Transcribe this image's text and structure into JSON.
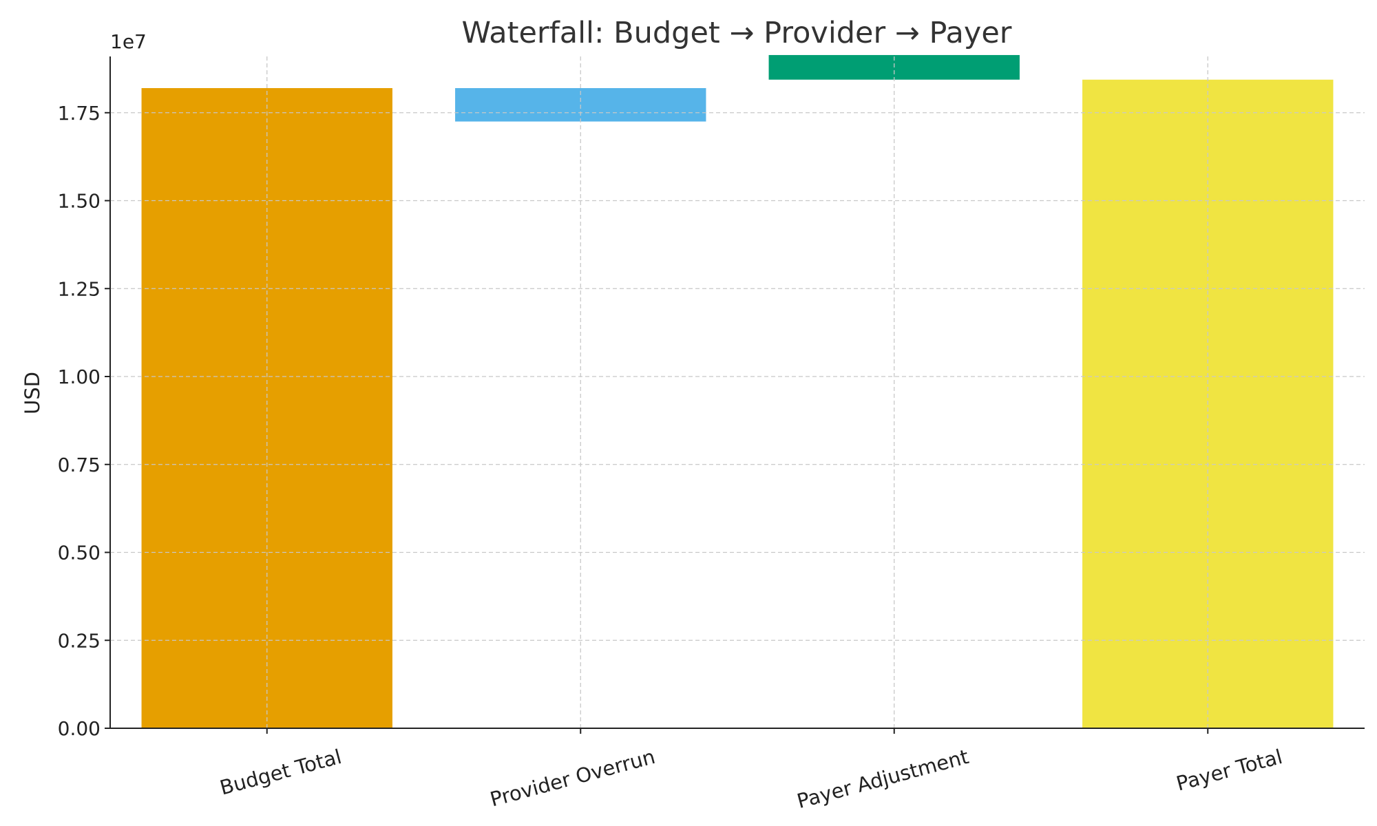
{
  "chart_data": {
    "type": "bar",
    "title": "Waterfall: Budget → Provider → Payer",
    "xlabel": "",
    "ylabel": "USD",
    "y_offset_text": "1e7",
    "ylim": [
      0,
      1.91
    ],
    "yticks": [
      0.0,
      0.25,
      0.5,
      0.75,
      1.0,
      1.25,
      1.5,
      1.75
    ],
    "ytick_labels": [
      "0.00",
      "0.25",
      "0.50",
      "0.75",
      "1.00",
      "1.25",
      "1.50",
      "1.75"
    ],
    "grid": true,
    "categories": [
      "Budget Total",
      "Provider Overrun",
      "Payer Adjustment",
      "Payer Total"
    ],
    "bars": [
      {
        "category": "Budget Total",
        "base": 0,
        "top": 1.82,
        "color": "#E69F00"
      },
      {
        "category": "Provider Overrun",
        "base": 1.725,
        "top": 1.82,
        "color": "#56B4E9"
      },
      {
        "category": "Payer Adjustment",
        "base": 1.844,
        "top": 1.914,
        "color": "#009E73"
      },
      {
        "category": "Payer Total",
        "base": 0,
        "top": 1.844,
        "color": "#F0E442"
      }
    ]
  }
}
